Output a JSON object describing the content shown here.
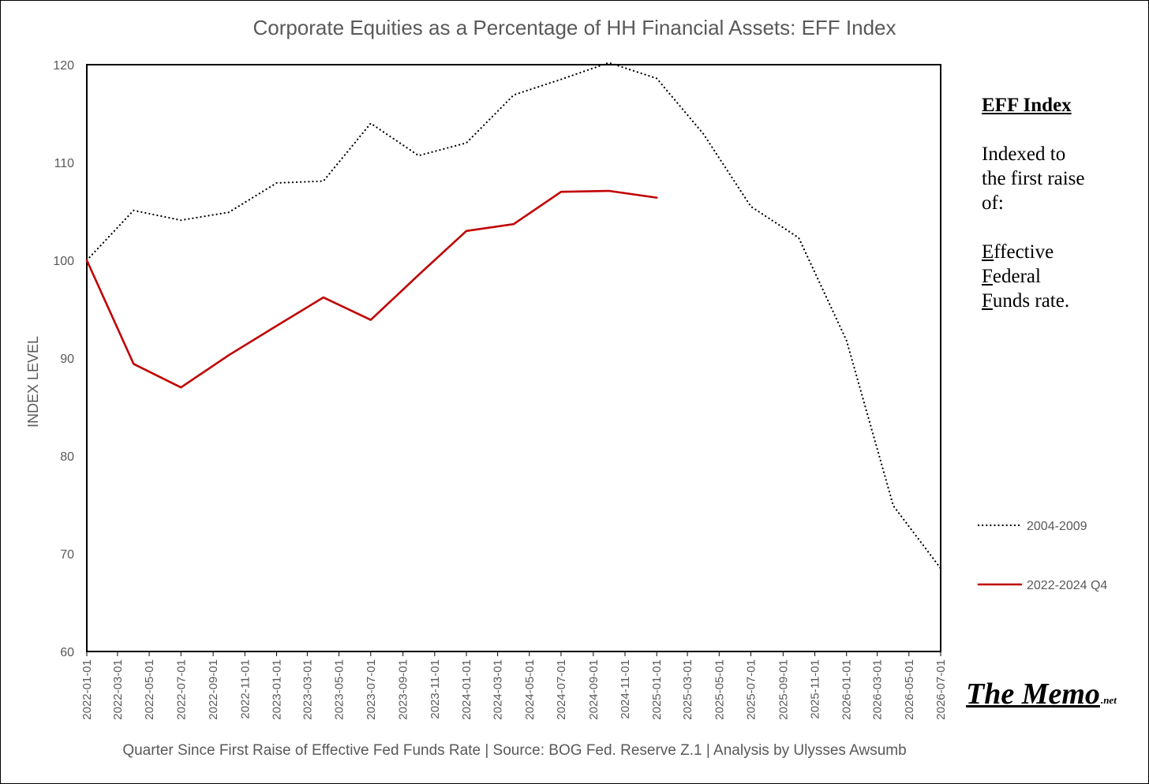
{
  "chart_data": {
    "type": "line",
    "title": "Corporate Equities as a Percentage of HH Financial Assets: EFF Index",
    "xlabel": "Quarter Since First Raise of Effective Fed Funds Rate  |  Source: BOG Fed. Reserve Z.1  |  Analysis by Ulysses Awsumb",
    "ylabel": "INDEX LEVEL",
    "ylim": [
      60,
      120
    ],
    "yticks": [
      60,
      70,
      80,
      90,
      100,
      110,
      120
    ],
    "categories": [
      "2022-01-01",
      "2022-03-01",
      "2022-05-01",
      "2022-07-01",
      "2022-09-01",
      "2022-11-01",
      "2023-01-01",
      "2023-03-01",
      "2023-05-01",
      "2023-07-01",
      "2023-09-01",
      "2023-11-01",
      "2024-01-01",
      "2024-03-01",
      "2024-05-01",
      "2024-07-01",
      "2024-09-01",
      "2024-11-01",
      "2025-01-01",
      "2025-03-01",
      "2025-05-01",
      "2025-07-01",
      "2025-09-01",
      "2025-11-01",
      "2026-01-01",
      "2026-03-01",
      "2026-05-01",
      "2026-07-01"
    ],
    "series": [
      {
        "name": "2004-2009",
        "style": "dotted",
        "color": "#000000",
        "x": [
          "2022-01-01",
          "2022-04-01",
          "2022-07-01",
          "2022-10-01",
          "2023-01-01",
          "2023-04-01",
          "2023-07-01",
          "2023-10-01",
          "2024-01-01",
          "2024-04-01",
          "2024-07-01",
          "2024-10-01",
          "2025-01-01",
          "2025-04-01",
          "2025-07-01",
          "2025-10-01",
          "2026-01-01",
          "2026-04-01",
          "2026-07-01"
        ],
        "values": [
          100,
          105.1,
          104.1,
          104.9,
          107.9,
          108.1,
          114.0,
          110.7,
          112.0,
          116.9,
          118.5,
          120.2,
          118.6,
          112.9,
          105.5,
          102.3,
          91.8,
          74.9,
          68.5
        ]
      },
      {
        "name": "2022-2024 Q4",
        "style": "solid",
        "color": "#c00000",
        "x": [
          "2022-01-01",
          "2022-04-01",
          "2022-07-01",
          "2022-10-01",
          "2023-01-01",
          "2023-04-01",
          "2023-07-01",
          "2023-10-01",
          "2024-01-01",
          "2024-04-01",
          "2024-07-01",
          "2024-10-01",
          "2025-01-01"
        ],
        "values": [
          100,
          89.4,
          87.0,
          90.3,
          93.3,
          96.2,
          93.9,
          98.5,
          103.0,
          103.7,
          107.0,
          107.1,
          106.4
        ]
      }
    ],
    "legend": {
      "position": "right",
      "entries": [
        "2004-2009",
        "2022-2024 Q4"
      ]
    }
  },
  "side_note": {
    "heading": "EFF Index",
    "lines": [
      "Indexed to",
      "the first raise",
      "of:"
    ],
    "acronym": [
      {
        "letter": "E",
        "rest": "ffective"
      },
      {
        "letter": "F",
        "rest": "ederal"
      },
      {
        "letter": "F",
        "rest": "unds rate."
      }
    ]
  },
  "branding": {
    "logo_text": "The Memo",
    "logo_suffix": ".net"
  },
  "colors": {
    "red_series": "#c00000",
    "dotted_series": "#000000",
    "text_gray": "#595959"
  }
}
